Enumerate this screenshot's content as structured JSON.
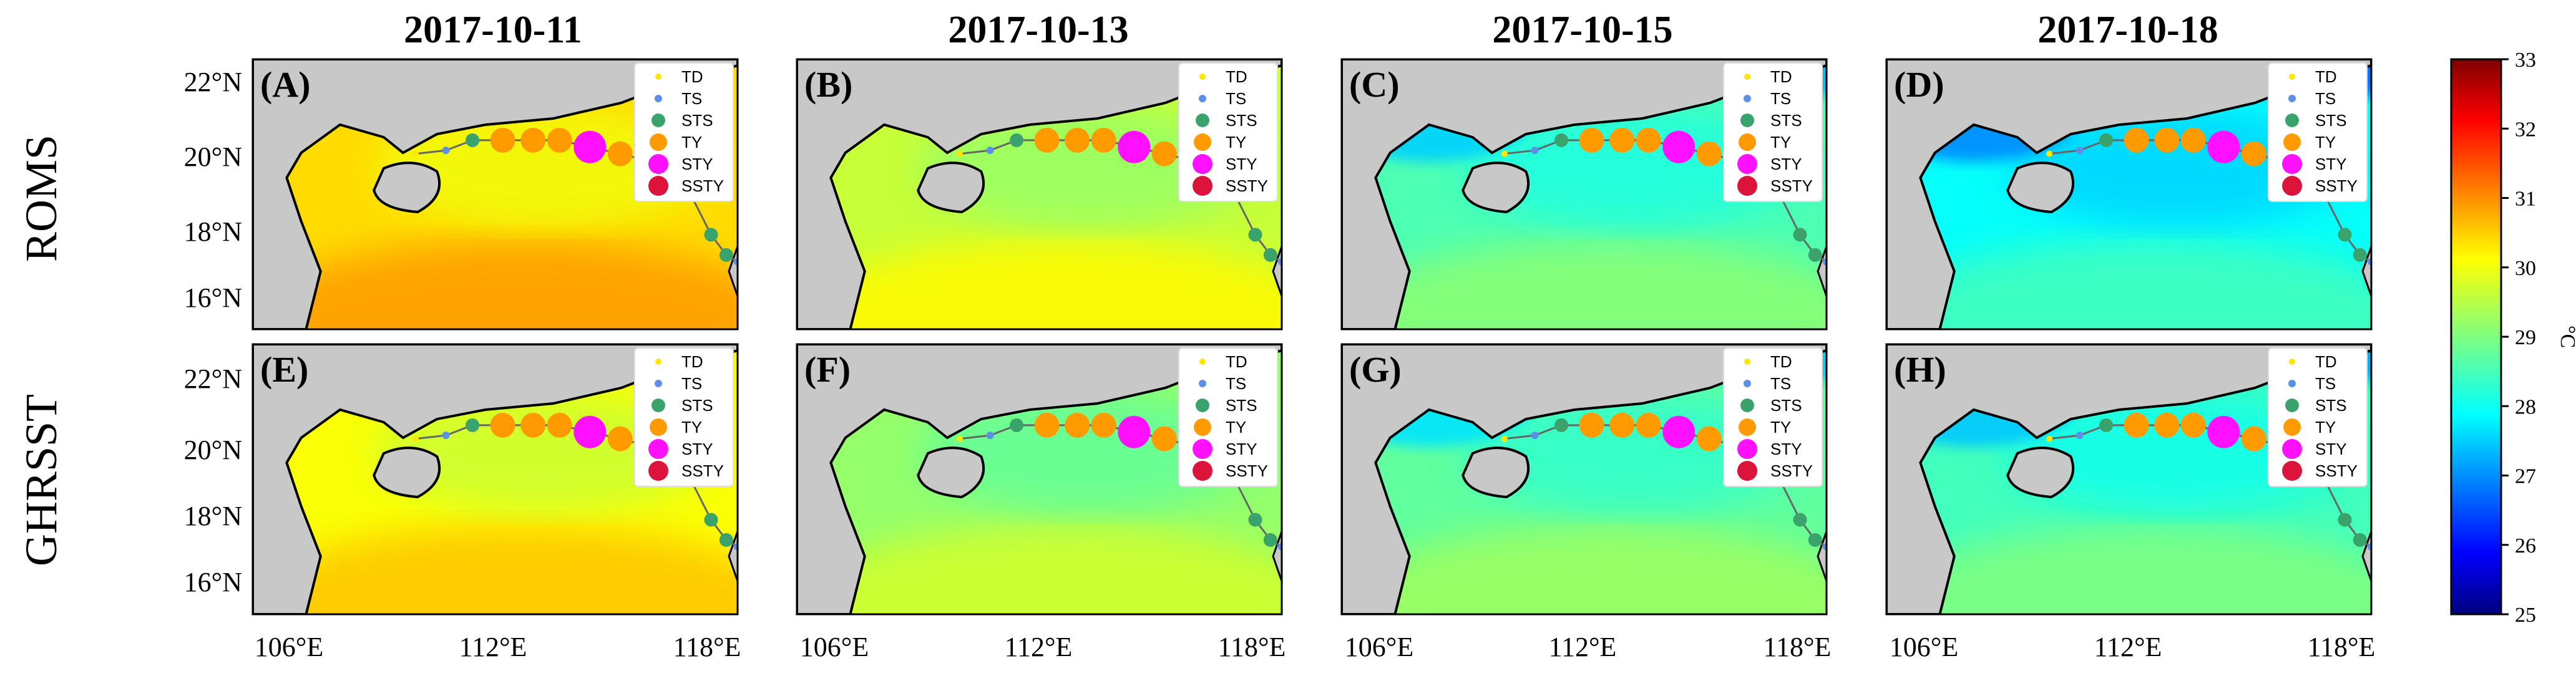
{
  "columns": [
    "2017-10-11",
    "2017-10-13",
    "2017-10-15",
    "2017-10-18"
  ],
  "rows": [
    "ROMS",
    "GHRSST"
  ],
  "panel_labels": [
    "(A)",
    "(B)",
    "(C)",
    "(D)",
    "(E)",
    "(F)",
    "(G)",
    "(H)"
  ],
  "y_ticks": [
    "22°N",
    "20°N",
    "18°N",
    "16°N"
  ],
  "x_ticks": [
    "106°E",
    "112°E",
    "118°E"
  ],
  "legend": [
    {
      "label": "TD",
      "color": "#ffe600"
    },
    {
      "label": "TS",
      "color": "#5b8fe8"
    },
    {
      "label": "STS",
      "color": "#3aa36b"
    },
    {
      "label": "TY",
      "color": "#ff9a00"
    },
    {
      "label": "STY",
      "color": "#ff10ff"
    },
    {
      "label": "SSTY",
      "color": "#dc143c"
    }
  ],
  "colorbar": {
    "min": 25,
    "max": 33,
    "ticks": [
      "33",
      "32",
      "31",
      "30",
      "29",
      "28",
      "27",
      "26",
      "25"
    ],
    "unit": "°C",
    "colormap": "jet"
  },
  "sst_level_by_panel": [
    0.66,
    0.57,
    0.45,
    0.38,
    0.62,
    0.52,
    0.47,
    0.44
  ],
  "land_color": "#c8c8c8",
  "track_points": [
    {
      "lon": 109.5,
      "lat": 20.2,
      "category": "TD"
    },
    {
      "lon": 110.3,
      "lat": 20.3,
      "category": "TS"
    },
    {
      "lon": 111.0,
      "lat": 20.6,
      "category": "STS"
    },
    {
      "lon": 111.8,
      "lat": 20.6,
      "category": "TY"
    },
    {
      "lon": 112.6,
      "lat": 20.6,
      "category": "TY"
    },
    {
      "lon": 113.3,
      "lat": 20.6,
      "category": "TY"
    },
    {
      "lon": 114.1,
      "lat": 20.4,
      "category": "STY"
    },
    {
      "lon": 114.9,
      "lat": 20.2,
      "category": "TY"
    },
    {
      "lon": 115.6,
      "lat": 20.0,
      "category": "TY"
    },
    {
      "lon": 116.4,
      "lat": 19.8,
      "category": "TY"
    },
    {
      "lon": 117.3,
      "lat": 17.8,
      "category": "STS"
    },
    {
      "lon": 117.7,
      "lat": 17.2,
      "category": "STS"
    },
    {
      "lon": 118.0,
      "lat": 17.0,
      "category": "TS"
    }
  ]
}
